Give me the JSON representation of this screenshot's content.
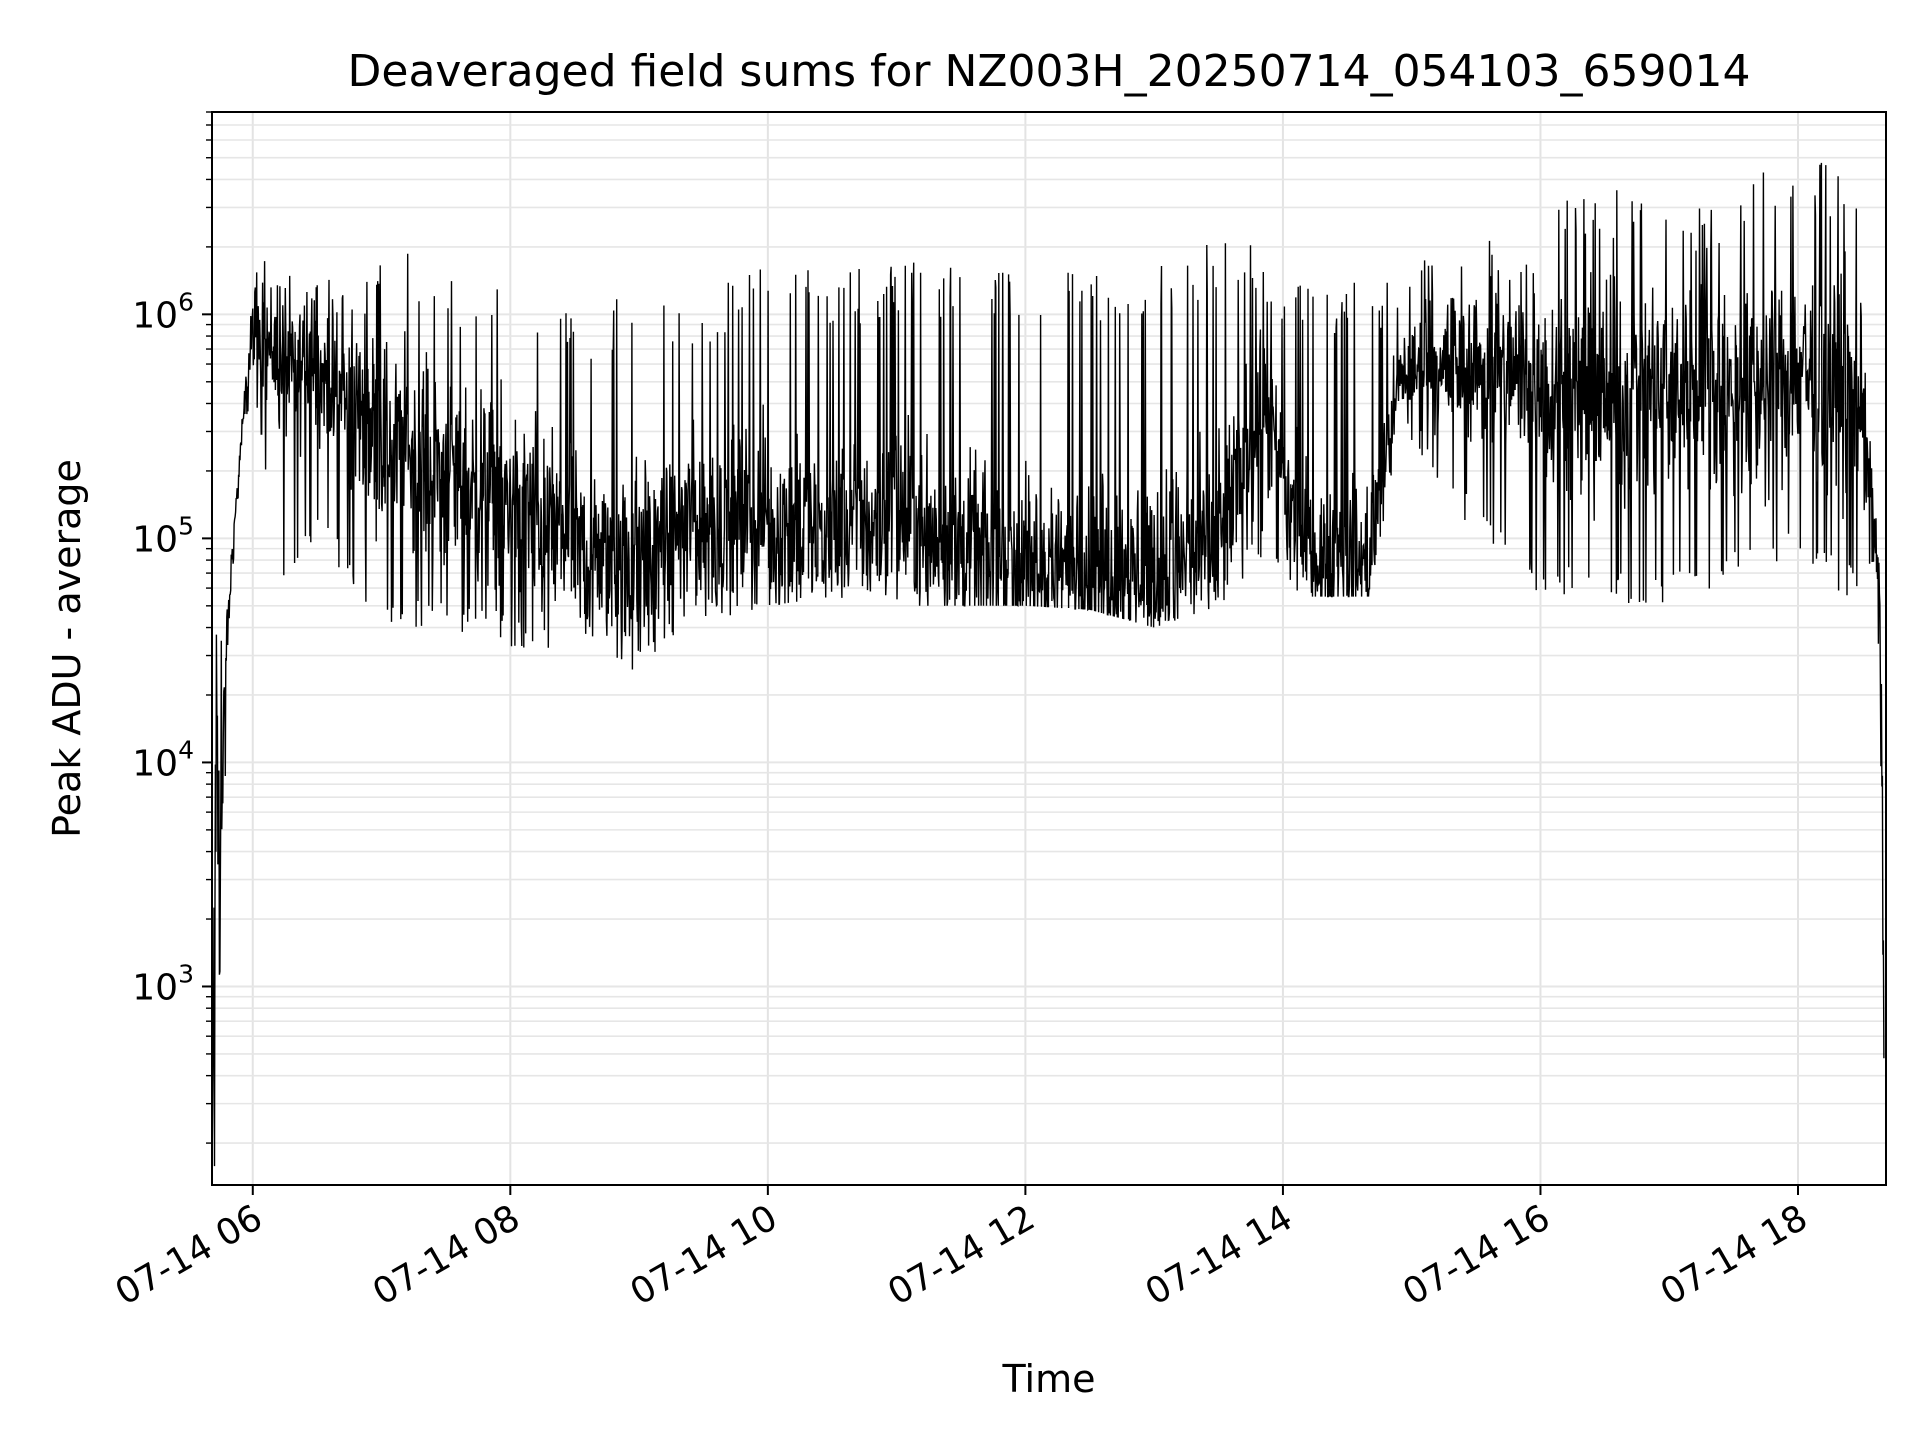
{
  "chart_data": {
    "type": "line",
    "title": "Deaveraged field sums for NZ003H_20250714_054103_659014",
    "xlabel": "Time",
    "ylabel": "Peak ADU - average",
    "yscale": "log",
    "xlim": [
      "2025-07-14 05:41",
      "2025-07-14 18:41"
    ],
    "ylim": [
      130,
      8000000
    ],
    "grid": true,
    "x_ticks": [
      {
        "value": "2025-07-14 06:00",
        "label": "07-14 06"
      },
      {
        "value": "2025-07-14 08:00",
        "label": "07-14 08"
      },
      {
        "value": "2025-07-14 10:00",
        "label": "07-14 10"
      },
      {
        "value": "2025-07-14 12:00",
        "label": "07-14 12"
      },
      {
        "value": "2025-07-14 14:00",
        "label": "07-14 14"
      },
      {
        "value": "2025-07-14 16:00",
        "label": "07-14 16"
      },
      {
        "value": "2025-07-14 18:00",
        "label": "07-14 18"
      }
    ],
    "y_ticks": [
      {
        "value": 1000,
        "base": "10",
        "exp": "3"
      },
      {
        "value": 10000,
        "base": "10",
        "exp": "4"
      },
      {
        "value": 100000,
        "base": "10",
        "exp": "5"
      },
      {
        "value": 1000000,
        "base": "10",
        "exp": "6"
      }
    ],
    "series": [
      {
        "color": "#000000",
        "envelope": [
          {
            "x": "2025-07-14 05:41",
            "low": 140,
            "high": 140,
            "median": 140
          },
          {
            "x": "2025-07-14 05:43",
            "low": 130,
            "high": 60000,
            "median": 20000
          },
          {
            "x": "2025-07-14 05:45",
            "low": 250,
            "high": 50000,
            "median": 3000
          },
          {
            "x": "2025-07-14 05:47",
            "low": 7000,
            "high": 40000,
            "median": 20000
          },
          {
            "x": "2025-07-14 05:50",
            "low": 60000,
            "high": 110000,
            "median": 80000
          },
          {
            "x": "2025-07-14 05:55",
            "low": 200000,
            "high": 400000,
            "median": 280000
          },
          {
            "x": "2025-07-14 06:00",
            "low": 500000,
            "high": 2400000,
            "median": 900000
          },
          {
            "x": "2025-07-14 06:15",
            "low": 50000,
            "high": 1500000,
            "median": 600000
          },
          {
            "x": "2025-07-14 06:30",
            "low": 100000,
            "high": 1400000,
            "median": 550000
          },
          {
            "x": "2025-07-14 07:00",
            "low": 40000,
            "high": 2200000,
            "median": 300000
          },
          {
            "x": "2025-07-14 07:30",
            "low": 38000,
            "high": 1500000,
            "median": 200000
          },
          {
            "x": "2025-07-14 08:00",
            "low": 33000,
            "high": 1300000,
            "median": 150000
          },
          {
            "x": "2025-07-14 08:20",
            "low": 28000,
            "high": 1400000,
            "median": 110000
          },
          {
            "x": "2025-07-14 08:40",
            "low": 32000,
            "high": 800000,
            "median": 80000
          },
          {
            "x": "2025-07-14 09:00",
            "low": 25000,
            "high": 1800000,
            "median": 80000
          },
          {
            "x": "2025-07-14 09:20",
            "low": 40000,
            "high": 1000000,
            "median": 120000
          },
          {
            "x": "2025-07-14 10:00",
            "low": 50000,
            "high": 1900000,
            "median": 120000
          },
          {
            "x": "2025-07-14 10:30",
            "low": 55000,
            "high": 1500000,
            "median": 110000
          },
          {
            "x": "2025-07-14 11:00",
            "low": 50000,
            "high": 1800000,
            "median": 130000
          },
          {
            "x": "2025-07-14 11:30",
            "low": 50000,
            "high": 1700000,
            "median": 90000
          },
          {
            "x": "2025-07-14 12:00",
            "low": 50000,
            "high": 1700000,
            "median": 75000
          },
          {
            "x": "2025-07-14 12:30",
            "low": 48000,
            "high": 1600000,
            "median": 75000
          },
          {
            "x": "2025-07-14 13:00",
            "low": 40000,
            "high": 1600000,
            "median": 75000
          },
          {
            "x": "2025-07-14 13:30",
            "low": 50000,
            "high": 2200000,
            "median": 90000
          },
          {
            "x": "2025-07-14 13:50",
            "low": 80000,
            "high": 2000000,
            "median": 400000
          },
          {
            "x": "2025-07-14 14:10",
            "low": 55000,
            "high": 1400000,
            "median": 90000
          },
          {
            "x": "2025-07-14 14:40",
            "low": 55000,
            "high": 1500000,
            "median": 80000
          },
          {
            "x": "2025-07-14 14:55",
            "low": 300000,
            "high": 1600000,
            "median": 550000
          },
          {
            "x": "2025-07-14 15:30",
            "low": 100000,
            "high": 2200000,
            "median": 600000
          },
          {
            "x": "2025-07-14 16:00",
            "low": 50000,
            "high": 2500000,
            "median": 500000
          },
          {
            "x": "2025-07-14 16:20",
            "low": 60000,
            "high": 4000000,
            "median": 400000
          },
          {
            "x": "2025-07-14 16:50",
            "low": 45000,
            "high": 3500000,
            "median": 450000
          },
          {
            "x": "2025-07-14 17:20",
            "low": 60000,
            "high": 3000000,
            "median": 500000
          },
          {
            "x": "2025-07-14 17:40",
            "low": 70000,
            "high": 4300000,
            "median": 450000
          },
          {
            "x": "2025-07-14 18:00",
            "low": 80000,
            "high": 5000000,
            "median": 600000
          },
          {
            "x": "2025-07-14 18:15",
            "low": 60000,
            "high": 4800000,
            "median": 500000
          },
          {
            "x": "2025-07-14 18:30",
            "low": 50000,
            "high": 3300000,
            "median": 400000
          },
          {
            "x": "2025-07-14 18:35",
            "low": 80000,
            "high": 200000,
            "median": 130000
          },
          {
            "x": "2025-07-14 18:38",
            "low": 20000,
            "high": 100000,
            "median": 60000
          },
          {
            "x": "2025-07-14 18:40",
            "low": 150,
            "high": 10000,
            "median": 1000
          }
        ]
      }
    ]
  }
}
